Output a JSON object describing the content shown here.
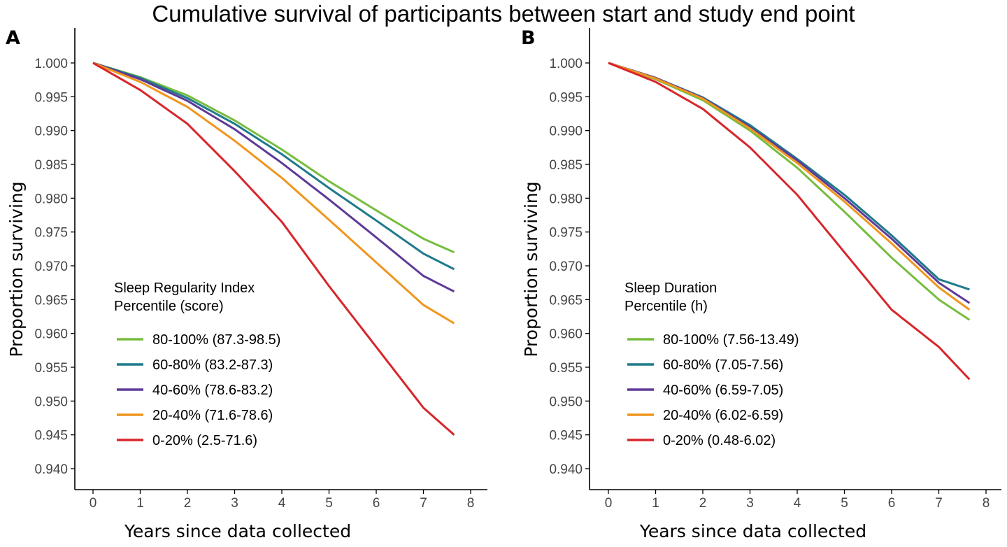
{
  "title": "Cumulative survival of participants between start and study end point",
  "chart_data": [
    {
      "panel": "A",
      "type": "line",
      "xlabel": "Years since data collected",
      "ylabel": "Proportion surviving",
      "xlim": [
        0,
        8
      ],
      "ylim": [
        0.94,
        1.0
      ],
      "xticks": [
        "0",
        "1",
        "2",
        "3",
        "4",
        "5",
        "6",
        "7",
        "8"
      ],
      "yticks": [
        "0.940",
        "0.945",
        "0.950",
        "0.955",
        "0.960",
        "0.965",
        "0.970",
        "0.975",
        "0.980",
        "0.985",
        "0.990",
        "0.995",
        "1.000"
      ],
      "legend_title": [
        "Sleep Regularity Index",
        "Percentile (score)"
      ],
      "legend_position": "bottom-left",
      "grid": false,
      "series": [
        {
          "name": "80-100% (87.3-98.5)",
          "color": "#77bd3f",
          "x": [
            0,
            1,
            2,
            3,
            4,
            5,
            6,
            7,
            7.65
          ],
          "y": [
            1.0,
            0.9979,
            0.9952,
            0.9915,
            0.9872,
            0.9825,
            0.9782,
            0.974,
            0.972
          ]
        },
        {
          "name": "60-80% (83.2-87.3)",
          "color": "#1e7a8c",
          "x": [
            0,
            1,
            2,
            3,
            4,
            5,
            6,
            7,
            7.65
          ],
          "y": [
            1.0,
            0.9978,
            0.9948,
            0.991,
            0.9865,
            0.9815,
            0.9767,
            0.9718,
            0.9695
          ]
        },
        {
          "name": "40-60% (78.6-83.2)",
          "color": "#5e3a98",
          "x": [
            0,
            1,
            2,
            3,
            4,
            5,
            6,
            7,
            7.65
          ],
          "y": [
            1.0,
            0.9976,
            0.9944,
            0.9902,
            0.9852,
            0.9798,
            0.9742,
            0.9685,
            0.9662
          ]
        },
        {
          "name": "20-40% (71.6-78.6)",
          "color": "#f0961e",
          "x": [
            0,
            1,
            2,
            3,
            4,
            5,
            6,
            7,
            7.65
          ],
          "y": [
            1.0,
            0.9972,
            0.9935,
            0.9885,
            0.983,
            0.9768,
            0.9705,
            0.9642,
            0.9615
          ]
        },
        {
          "name": "0-20% (2.5-71.6)",
          "color": "#d7262b",
          "x": [
            0,
            1,
            2,
            3,
            4,
            5,
            6,
            7,
            7.65
          ],
          "y": [
            1.0,
            0.996,
            0.991,
            0.984,
            0.9765,
            0.967,
            0.958,
            0.949,
            0.945
          ]
        }
      ]
    },
    {
      "panel": "B",
      "type": "line",
      "xlabel": "Years since data collected",
      "ylabel": "Proportion surviving",
      "xlim": [
        0,
        8
      ],
      "ylim": [
        0.94,
        1.0
      ],
      "xticks": [
        "0",
        "1",
        "2",
        "3",
        "4",
        "5",
        "6",
        "7",
        "8"
      ],
      "yticks": [
        "0.940",
        "0.945",
        "0.950",
        "0.955",
        "0.960",
        "0.965",
        "0.970",
        "0.975",
        "0.980",
        "0.985",
        "0.990",
        "0.995",
        "1.000"
      ],
      "legend_title": [
        "Sleep Duration",
        "Percentile (h)"
      ],
      "legend_position": "bottom-left",
      "grid": false,
      "series": [
        {
          "name": "80-100% (7.56-13.49)",
          "color": "#77bd3f",
          "x": [
            0,
            1,
            2,
            3,
            4,
            5,
            6,
            7,
            7.65
          ],
          "y": [
            1.0,
            0.9976,
            0.9945,
            0.99,
            0.9845,
            0.978,
            0.9712,
            0.965,
            0.962
          ]
        },
        {
          "name": "60-80% (7.05-7.56)",
          "color": "#1e7a8c",
          "x": [
            0,
            1,
            2,
            3,
            4,
            5,
            6,
            7,
            7.65
          ],
          "y": [
            1.0,
            0.9978,
            0.9949,
            0.9908,
            0.9858,
            0.9805,
            0.9745,
            0.968,
            0.9665
          ]
        },
        {
          "name": "40-60% (6.59-7.05)",
          "color": "#5e3a98",
          "x": [
            0,
            1,
            2,
            3,
            4,
            5,
            6,
            7,
            7.65
          ],
          "y": [
            1.0,
            0.9978,
            0.9948,
            0.9905,
            0.9856,
            0.98,
            0.974,
            0.9675,
            0.9645
          ]
        },
        {
          "name": "20-40% (6.02-6.59)",
          "color": "#f0961e",
          "x": [
            0,
            1,
            2,
            3,
            4,
            5,
            6,
            7,
            7.65
          ],
          "y": [
            1.0,
            0.9977,
            0.9947,
            0.9903,
            0.9852,
            0.9795,
            0.9733,
            0.9668,
            0.9635
          ]
        },
        {
          "name": "0-20% (0.48-6.02)",
          "color": "#d7262b",
          "x": [
            0,
            1,
            2,
            3,
            4,
            5,
            6,
            7,
            7.65
          ],
          "y": [
            1.0,
            0.9972,
            0.9932,
            0.9875,
            0.9805,
            0.972,
            0.9635,
            0.958,
            0.9532
          ]
        }
      ]
    }
  ]
}
